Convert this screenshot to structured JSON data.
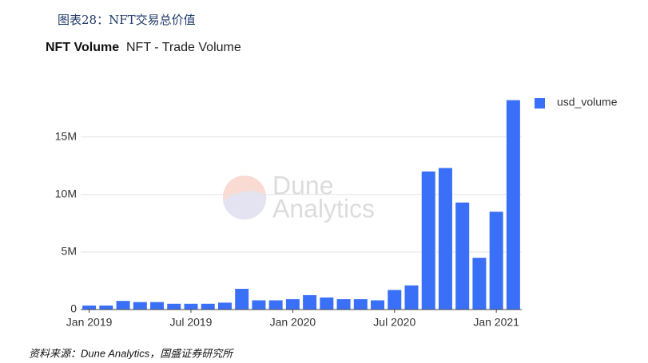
{
  "page_title": "图表28：NFT交易总价值",
  "source": "资料来源：Dune Analytics，国盛证券研究所",
  "chart_data": {
    "type": "bar",
    "title": "NFT Volume",
    "subtitle": "NFT - Trade Volume",
    "watermark": [
      "Dune",
      "Analytics"
    ],
    "categories": [
      "Jan 2019",
      null,
      null,
      null,
      null,
      null,
      "Jul 2019",
      null,
      null,
      null,
      null,
      null,
      "Jan 2020",
      null,
      null,
      null,
      null,
      null,
      "Jul 2020",
      null,
      null,
      null,
      null,
      null,
      "Jan 2021",
      null
    ],
    "series": [
      {
        "name": "usd_volume",
        "color": "#3a6ff7",
        "values": [
          350000,
          350000,
          750000,
          650000,
          650000,
          500000,
          500000,
          500000,
          600000,
          1800000,
          800000,
          800000,
          900000,
          1250000,
          1050000,
          900000,
          900000,
          800000,
          1700000,
          2100000,
          12000000,
          12300000,
          9300000,
          4500000,
          8500000,
          18200000
        ]
      }
    ],
    "ylim": [
      0,
      19000000
    ],
    "yticks": [
      0,
      {
        "value": 5000000,
        "label": "5M"
      },
      {
        "value": 10000000,
        "label": "10M"
      },
      {
        "value": 15000000,
        "label": "15M"
      }
    ],
    "grid": true,
    "legend": "top-right"
  }
}
